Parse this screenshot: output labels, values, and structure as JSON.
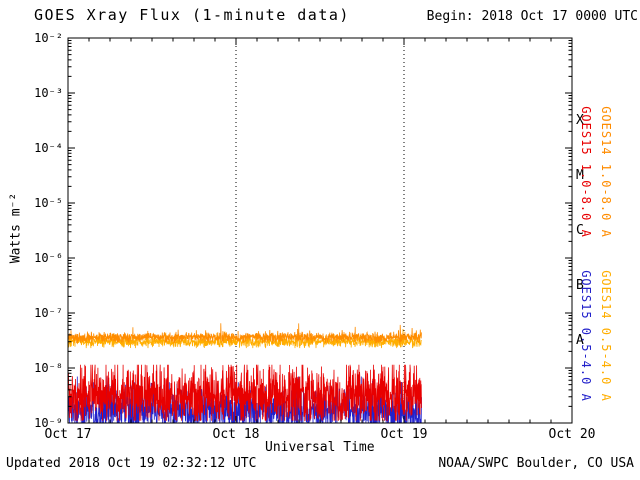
{
  "header": {
    "title": "GOES Xray Flux (1-minute data)",
    "begin_label": "Begin:  2018 Oct 17 0000 UTC"
  },
  "axes": {
    "y_label": "Watts m⁻²",
    "x_label": "Universal Time",
    "y_ticks": [
      "10⁻²",
      "10⁻³",
      "10⁻⁴",
      "10⁻⁵",
      "10⁻⁶",
      "10⁻⁷",
      "10⁻⁸",
      "10⁻⁹"
    ],
    "x_ticks": [
      "Oct 17",
      "Oct 18",
      "Oct 19",
      "Oct 20"
    ],
    "flare_classes": [
      "X",
      "M",
      "C",
      "B",
      "A"
    ]
  },
  "legend": [
    {
      "label": "GOES15 1.0-8.0 A",
      "color": "#e80000"
    },
    {
      "label": "GOES14 1.0-8.0 A",
      "color": "#ff8c00"
    },
    {
      "label": "GOES15 0.5-4.0 A",
      "color": "#2222cc"
    },
    {
      "label": "GOES14 0.5-4.0 A",
      "color": "#ffae00"
    }
  ],
  "footer": {
    "updated": "Updated 2018 Oct 19 02:32:12 UTC",
    "source": "NOAA/SWPC Boulder, CO USA"
  },
  "chart_data": {
    "type": "line",
    "title": "GOES Xray Flux (1-minute data)",
    "xlabel": "Universal Time",
    "ylabel": "Watts m⁻²",
    "y_scale": "log",
    "y_range": [
      1e-09,
      0.01
    ],
    "x_range": [
      "2018 Oct 17 0000 UTC",
      "2018 Oct 20 0000 UTC"
    ],
    "grid": "vertical dotted lines at each day boundary (Oct 18, Oct 19)",
    "legend_position": "rotated labels along right edge",
    "flare_class_bands": {
      "A": 1e-08,
      "B": 1e-07,
      "C": 1e-06,
      "M": 1e-05,
      "X": 0.0001
    },
    "data_end_day": 2.104,
    "data_end_time": "2018 Oct 19 ~0230 UTC",
    "series": [
      {
        "id": "goes15-short",
        "name": "GOES15 0.5-4.0 A",
        "color": "#2222cc",
        "shape": "noisy band",
        "median_flux": 1.7e-09,
        "range": [
          9.5e-10,
          7e-09
        ],
        "log_sigma": 0.22,
        "spike_prob": 0.02,
        "spike_amp": 0.5
      },
      {
        "id": "goes15-long",
        "name": "GOES15 1.0-8.0 A",
        "color": "#e80000",
        "shape": "noisy band",
        "median_flux": 3.2e-09,
        "range": [
          1.1e-09,
          1.15e-08
        ],
        "log_sigma": 0.28,
        "spike_prob": 0.03,
        "spike_amp": 0.4
      },
      {
        "id": "goes14-short",
        "name": "GOES14 0.5-4.0 A",
        "color": "#ffae00",
        "shape": "flat noisy band",
        "median_flux": 3e-08,
        "range": [
          2.3e-08,
          5.5e-08
        ],
        "log_sigma": 0.05,
        "spike_prob": 0.01,
        "spike_amp": 0.2
      },
      {
        "id": "goes14-long",
        "name": "GOES14 1.0-8.0 A",
        "color": "#ff8c00",
        "shape": "flat noisy band",
        "median_flux": 3.6e-08,
        "range": [
          2.8e-08,
          6.5e-08
        ],
        "log_sigma": 0.045,
        "spike_prob": 0.008,
        "spike_amp": 0.25
      }
    ]
  }
}
